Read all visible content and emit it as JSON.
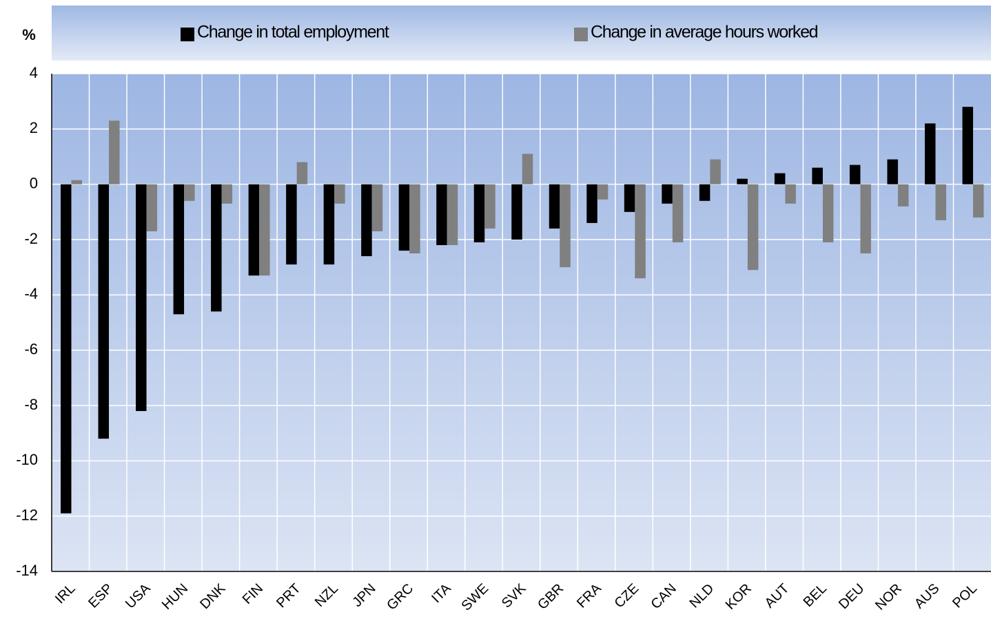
{
  "chart_data": {
    "type": "bar",
    "y_label": "%",
    "categories": [
      "IRL",
      "ESP",
      "USA",
      "HUN",
      "DNK",
      "FIN",
      "PRT",
      "NZL",
      "JPN",
      "GRC",
      "ITA",
      "SWE",
      "SVK",
      "GBR",
      "FRA",
      "CZE",
      "CAN",
      "NLD",
      "KOR",
      "AUT",
      "BEL",
      "DEU",
      "NOR",
      "AUS",
      "POL"
    ],
    "series": [
      {
        "name": "Change in total employment",
        "color": "#000000",
        "values": [
          -11.9,
          -9.2,
          -8.2,
          -4.7,
          -4.6,
          -3.3,
          -2.9,
          -2.9,
          -2.6,
          -2.4,
          -2.2,
          -2.1,
          -2.0,
          -1.6,
          -1.4,
          -1.0,
          -0.7,
          -0.6,
          0.2,
          0.4,
          0.6,
          0.7,
          0.9,
          2.2,
          2.8
        ]
      },
      {
        "name": "Change in average hours worked",
        "color": "#808080",
        "values": [
          0.15,
          2.3,
          -1.7,
          -0.6,
          -0.7,
          -3.3,
          0.8,
          -0.7,
          -1.7,
          -2.5,
          -2.2,
          -1.6,
          1.1,
          -3.0,
          -0.55,
          -3.4,
          -2.1,
          0.9,
          -3.1,
          -0.7,
          -2.1,
          -2.5,
          -0.8,
          -1.3,
          -1.2
        ]
      }
    ],
    "ylim": [
      -14,
      4
    ],
    "yticks": [
      -14,
      -12,
      -10,
      -8,
      -6,
      -4,
      -2,
      0,
      2,
      4
    ],
    "grid": true,
    "legend": "top"
  }
}
